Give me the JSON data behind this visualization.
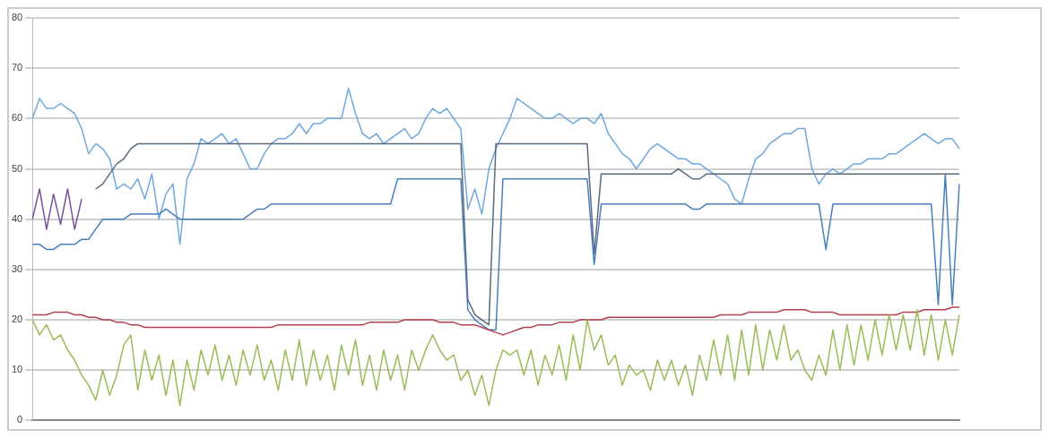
{
  "chart_data": {
    "type": "line",
    "ylim": [
      0,
      80
    ],
    "yticks": [
      0,
      10,
      20,
      30,
      40,
      50,
      60,
      70,
      80
    ],
    "grid": "y",
    "tick_labels": "y",
    "categories": [
      null,
      null,
      null,
      null,
      null,
      null,
      null,
      null,
      null,
      null,
      null,
      null,
      null,
      null,
      null,
      null,
      null,
      null,
      null,
      null,
      null,
      null,
      null,
      null,
      null,
      null,
      null,
      null,
      null,
      null,
      null,
      null,
      null,
      null,
      null,
      null,
      null,
      null,
      null,
      null,
      null,
      null,
      null,
      null,
      null,
      null,
      null,
      null,
      null,
      null,
      null,
      null,
      null,
      null,
      null,
      null,
      null,
      null,
      null,
      null,
      null,
      null,
      null,
      null,
      null,
      null,
      null,
      null,
      null,
      null,
      null,
      null,
      null,
      null,
      null,
      null,
      null,
      null,
      null,
      null,
      null,
      null,
      null,
      null,
      null,
      null,
      null,
      null,
      null,
      null,
      null,
      null,
      null,
      null,
      null,
      null,
      null,
      null,
      null,
      null,
      null,
      null,
      null,
      null,
      null,
      null,
      null,
      null,
      null,
      null,
      null,
      null,
      null,
      null,
      null,
      null,
      null,
      null,
      null,
      null,
      null,
      null,
      null,
      null,
      null,
      null,
      null,
      null,
      null,
      null,
      null,
      null,
      null
    ],
    "series": [
      {
        "color": "#9bbb59",
        "values": [
          20,
          17,
          19,
          16,
          17,
          14,
          12,
          9,
          7,
          4,
          10,
          5,
          9,
          15,
          17,
          6,
          14,
          8,
          13,
          5,
          12,
          3,
          12,
          6,
          14,
          9,
          15,
          8,
          13,
          7,
          14,
          9,
          15,
          8,
          12,
          6,
          14,
          8,
          16,
          7,
          14,
          8,
          13,
          6,
          15,
          9,
          16,
          7,
          13,
          6,
          14,
          8,
          13,
          6,
          14,
          10,
          14,
          17,
          14,
          12,
          13,
          8,
          10,
          5,
          9,
          3,
          10,
          14,
          13,
          14,
          9,
          14,
          7,
          13,
          9,
          15,
          8,
          17,
          10,
          20,
          14,
          17,
          11,
          13,
          7,
          11,
          9,
          10,
          6,
          12,
          8,
          12,
          7,
          11,
          5,
          13,
          8,
          16,
          9,
          17,
          8,
          18,
          9,
          19,
          10,
          18,
          12,
          19,
          12,
          14,
          10,
          8,
          13,
          9,
          18,
          10,
          19,
          11,
          19,
          12,
          20,
          13,
          21,
          14,
          21,
          14,
          22,
          13,
          21,
          12,
          20,
          13,
          21
        ]
      },
      {
        "color": "#b0404f",
        "values": [
          21,
          21,
          21,
          21.5,
          21.5,
          21.5,
          21,
          21,
          20.5,
          20.5,
          20,
          20,
          19.5,
          19.5,
          19,
          19,
          18.5,
          18.5,
          18.5,
          18.5,
          18.5,
          18.5,
          18.5,
          18.5,
          18.5,
          18.5,
          18.5,
          18.5,
          18.5,
          18.5,
          18.5,
          18.5,
          18.5,
          18.5,
          18.5,
          19,
          19,
          19,
          19,
          19,
          19,
          19,
          19,
          19,
          19,
          19,
          19,
          19,
          19.5,
          19.5,
          19.5,
          19.5,
          19.5,
          20,
          20,
          20,
          20,
          20,
          19.5,
          19.5,
          19.5,
          19,
          19,
          19,
          18.5,
          18,
          17.5,
          17,
          17.5,
          18,
          18.5,
          18.5,
          19,
          19,
          19,
          19.5,
          19.5,
          19.5,
          20,
          20,
          20,
          20,
          20.5,
          20.5,
          20.5,
          20.5,
          20.5,
          20.5,
          20.5,
          20.5,
          20.5,
          20.5,
          20.5,
          20.5,
          20.5,
          20.5,
          20.5,
          20.5,
          21,
          21,
          21,
          21,
          21.5,
          21.5,
          21.5,
          21.5,
          21.5,
          22,
          22,
          22,
          22,
          21.5,
          21.5,
          21.5,
          21.5,
          21,
          21,
          21,
          21,
          21,
          21,
          21,
          21,
          21,
          21.5,
          21.5,
          21.5,
          22,
          22,
          22,
          22,
          22.5,
          22.5
        ]
      },
      {
        "color": "#7a4fa0",
        "values": [
          40,
          46,
          38,
          45,
          39,
          46,
          38,
          44,
          null,
          null,
          null,
          null,
          null,
          null,
          null,
          null,
          null,
          null,
          null,
          null,
          null,
          null,
          null,
          null,
          null,
          null,
          null,
          null,
          null,
          null,
          null,
          null,
          null,
          null,
          null,
          null,
          null,
          null,
          null,
          null,
          null,
          null,
          null,
          null,
          null,
          null,
          null,
          null,
          null,
          null,
          null,
          null,
          null,
          null,
          null,
          null,
          null,
          null,
          null,
          null,
          null,
          null,
          null,
          null,
          null,
          null,
          null,
          null,
          null,
          null,
          null,
          null,
          null,
          null,
          null,
          null,
          null,
          null,
          null,
          null,
          null,
          null,
          null,
          null,
          null,
          null,
          null,
          null,
          null,
          null,
          null,
          null,
          null,
          null,
          null,
          null,
          null,
          null,
          null,
          null,
          null,
          null,
          null,
          null,
          null,
          null,
          null,
          null,
          null,
          null,
          null,
          null,
          null,
          null,
          null,
          null,
          null,
          null,
          null,
          null,
          null,
          null,
          null,
          null,
          null,
          null,
          null,
          null,
          null,
          null,
          null,
          null,
          null
        ]
      },
      {
        "color": "#4a7ebb",
        "values": [
          35,
          35,
          34,
          34,
          35,
          35,
          35,
          36,
          36,
          38,
          40,
          40,
          40,
          40,
          41,
          41,
          41,
          41,
          41,
          42,
          41,
          40,
          40,
          40,
          40,
          40,
          40,
          40,
          40,
          40,
          40,
          41,
          42,
          42,
          43,
          43,
          43,
          43,
          43,
          43,
          43,
          43,
          43,
          43,
          43,
          43,
          43,
          43,
          43,
          43,
          43,
          43,
          48,
          48,
          48,
          48,
          48,
          48,
          48,
          48,
          48,
          48,
          22,
          20,
          19,
          18,
          18,
          48,
          48,
          48,
          48,
          48,
          48,
          48,
          48,
          48,
          48,
          48,
          48,
          48,
          31,
          43,
          43,
          43,
          43,
          43,
          43,
          43,
          43,
          43,
          43,
          43,
          43,
          43,
          42,
          42,
          43,
          43,
          43,
          43,
          43,
          43,
          43,
          43,
          43,
          43,
          43,
          43,
          43,
          43,
          43,
          43,
          43,
          34,
          43,
          43,
          43,
          43,
          43,
          43,
          43,
          43,
          43,
          43,
          43,
          43,
          43,
          43,
          43,
          23,
          49,
          23,
          47
        ]
      },
      {
        "color": "#5a6a7c",
        "values": [
          null,
          null,
          null,
          null,
          null,
          null,
          null,
          null,
          null,
          46,
          47,
          49,
          51,
          52,
          54,
          55,
          55,
          55,
          55,
          55,
          55,
          55,
          55,
          55,
          55,
          55,
          55,
          55,
          55,
          55,
          55,
          55,
          55,
          55,
          55,
          55,
          55,
          55,
          55,
          55,
          55,
          55,
          55,
          55,
          55,
          55,
          55,
          55,
          55,
          55,
          55,
          55,
          55,
          55,
          55,
          55,
          55,
          55,
          55,
          55,
          55,
          55,
          24,
          21,
          20,
          19,
          55,
          55,
          55,
          55,
          55,
          55,
          55,
          55,
          55,
          55,
          55,
          55,
          55,
          55,
          33,
          49,
          49,
          49,
          49,
          49,
          49,
          49,
          49,
          49,
          49,
          49,
          50,
          49,
          48,
          48,
          49,
          49,
          49,
          49,
          49,
          49,
          49,
          49,
          49,
          49,
          49,
          49,
          49,
          49,
          49,
          49,
          49,
          49,
          49,
          49,
          49,
          49,
          49,
          49,
          49,
          49,
          49,
          49,
          49,
          49,
          49,
          49,
          49,
          49,
          49,
          49,
          49
        ]
      },
      {
        "color": "#6fa8dc",
        "values": [
          60,
          64,
          62,
          62,
          63,
          62,
          61,
          58,
          53,
          55,
          54,
          52,
          46,
          47,
          46,
          48,
          44,
          49,
          40,
          45,
          47,
          35,
          48,
          51,
          56,
          55,
          56,
          57,
          55,
          56,
          53,
          50,
          50,
          53,
          55,
          56,
          56,
          57,
          59,
          57,
          59,
          59,
          60,
          60,
          60,
          66,
          61,
          57,
          56,
          57,
          55,
          56,
          57,
          58,
          56,
          57,
          60,
          62,
          61,
          62,
          60,
          58,
          42,
          46,
          41,
          50,
          54,
          57,
          60,
          64,
          63,
          62,
          61,
          60,
          60,
          61,
          60,
          59,
          60,
          60,
          59,
          61,
          57,
          55,
          53,
          52,
          50,
          52,
          54,
          55,
          54,
          53,
          52,
          52,
          51,
          51,
          50,
          49,
          48,
          47,
          44,
          43,
          48,
          52,
          53,
          55,
          56,
          57,
          57,
          58,
          58,
          50,
          47,
          49,
          50,
          49,
          50,
          51,
          51,
          52,
          52,
          52,
          53,
          53,
          54,
          55,
          56,
          57,
          56,
          55,
          56,
          56,
          54
        ]
      }
    ]
  }
}
